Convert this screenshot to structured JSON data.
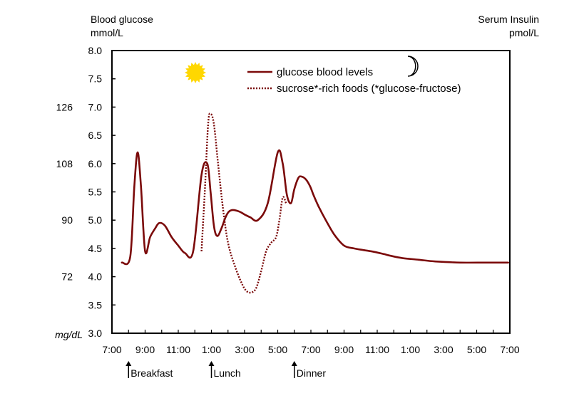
{
  "chart_data": {
    "type": "line",
    "left_axis_title_line1": "Blood glucose",
    "left_axis_title_line2": "mmol/L",
    "right_axis_title_line1": "Serum Insulin",
    "right_axis_title_line2": "pmol/L",
    "mgdl_unit_label": "mg/dL",
    "ylim": [
      3.0,
      8.0
    ],
    "y_ticks": [
      {
        "value": 3.0,
        "label": "3.0"
      },
      {
        "value": 3.5,
        "label": "3.5"
      },
      {
        "value": 4.0,
        "label": "4.0"
      },
      {
        "value": 4.5,
        "label": "4.5"
      },
      {
        "value": 5.0,
        "label": "5.0"
      },
      {
        "value": 5.5,
        "label": "5.5"
      },
      {
        "value": 6.0,
        "label": "6.0"
      },
      {
        "value": 6.5,
        "label": "6.5"
      },
      {
        "value": 7.0,
        "label": "7.0"
      },
      {
        "value": 7.5,
        "label": "7.5"
      },
      {
        "value": 8.0,
        "label": "8.0"
      }
    ],
    "mgdl_ticks": [
      {
        "value": 4.0,
        "label": "72"
      },
      {
        "value": 5.0,
        "label": "90"
      },
      {
        "value": 6.0,
        "label": "108"
      },
      {
        "value": 7.0,
        "label": "126"
      }
    ],
    "x_ticks": [
      {
        "hour": 7,
        "label": "7:00"
      },
      {
        "hour": 9,
        "label": "9:00"
      },
      {
        "hour": 11,
        "label": "11:00"
      },
      {
        "hour": 13,
        "label": "1:00"
      },
      {
        "hour": 15,
        "label": "3:00"
      },
      {
        "hour": 17,
        "label": "5:00"
      },
      {
        "hour": 19,
        "label": "7:00"
      },
      {
        "hour": 21,
        "label": "9:00"
      },
      {
        "hour": 23,
        "label": "11:00"
      },
      {
        "hour": 25,
        "label": "1:00"
      },
      {
        "hour": 27,
        "label": "3:00"
      },
      {
        "hour": 29,
        "label": "5:00"
      },
      {
        "hour": 31,
        "label": "7:00"
      }
    ],
    "xlim": [
      7,
      31
    ],
    "meals": [
      {
        "label": "Breakfast",
        "hour": 8.0
      },
      {
        "label": "Lunch",
        "hour": 13.0
      },
      {
        "label": "Dinner",
        "hour": 18.0
      }
    ],
    "legend": {
      "placement": "top",
      "entries": [
        {
          "label": "glucose blood levels",
          "style": "solid"
        },
        {
          "label": "sucrose*-rich foods (*glucose-fructose)",
          "style": "dotted"
        }
      ]
    },
    "line_color": "#7b0a0a",
    "sun_color": "#ffd700",
    "icons": [
      "sun-icon",
      "moon-icon"
    ],
    "series": [
      {
        "style": "solid",
        "x": [
          7.6,
          8.1,
          8.35,
          8.55,
          8.75,
          9.0,
          9.3,
          9.6,
          9.85,
          10.2,
          10.6,
          11.0,
          11.4,
          11.9,
          12.4,
          12.75,
          12.95,
          13.15,
          13.35,
          13.6,
          13.85,
          14.05,
          14.3,
          14.7,
          15.0,
          15.35,
          15.8,
          16.4,
          17.0,
          17.3,
          17.55,
          17.8,
          18.0,
          18.25,
          18.45,
          18.7,
          18.95,
          19.15,
          19.45,
          19.9,
          20.4,
          21.0,
          21.6,
          22.2,
          22.8,
          23.4,
          23.8,
          24.5,
          25.5,
          26.5,
          28.0,
          29.5,
          30.5,
          30.9
        ],
        "y": [
          4.25,
          4.35,
          5.6,
          6.2,
          5.6,
          4.45,
          4.7,
          4.85,
          4.95,
          4.9,
          4.7,
          4.55,
          4.42,
          4.45,
          5.8,
          6.0,
          5.5,
          4.9,
          4.72,
          4.85,
          5.05,
          5.15,
          5.18,
          5.15,
          5.1,
          5.05,
          5.0,
          5.3,
          6.2,
          6.0,
          5.45,
          5.3,
          5.55,
          5.75,
          5.77,
          5.72,
          5.6,
          5.45,
          5.25,
          5.0,
          4.75,
          4.55,
          4.5,
          4.47,
          4.44,
          4.4,
          4.37,
          4.33,
          4.3,
          4.27,
          4.25,
          4.25,
          4.25,
          4.25
        ]
      },
      {
        "style": "dotted",
        "x": [
          12.4,
          12.6,
          12.8,
          12.95,
          13.15,
          13.4,
          13.7,
          14.0,
          14.4,
          14.8,
          15.1,
          15.4,
          15.7,
          16.0,
          16.3,
          16.6,
          16.9,
          17.1,
          17.3,
          17.5
        ],
        "y": [
          4.45,
          5.5,
          6.7,
          6.88,
          6.7,
          6.0,
          5.2,
          4.6,
          4.2,
          3.9,
          3.75,
          3.72,
          3.8,
          4.1,
          4.45,
          4.6,
          4.7,
          5.0,
          5.4,
          5.3
        ]
      }
    ]
  }
}
